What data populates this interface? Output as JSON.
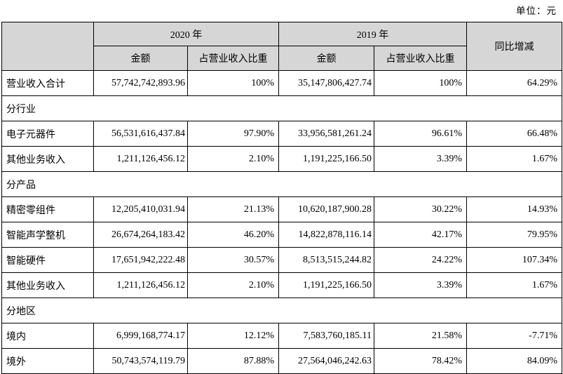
{
  "unit_label": "单位：元",
  "colors": {
    "shading_gray": "#d6d6d6",
    "border": "#000000",
    "background": "#ffffff"
  },
  "table": {
    "header": {
      "year_2020": "2020 年",
      "year_2019": "2019 年",
      "yoy": "同比增减",
      "amount_label": "金额",
      "ratio_label": "占营业收入比重"
    },
    "rows": [
      {
        "type": "data",
        "label": "营业收入合计",
        "a2020": "57,742,742,893.96",
        "r2020": "100%",
        "a2019": "35,147,806,427.74",
        "r2019": "100%",
        "yoy": "64.29%",
        "shaded_keys": [
          "r2020",
          "r2019"
        ]
      },
      {
        "type": "section",
        "label": "分行业"
      },
      {
        "type": "data",
        "label": "电子元器件",
        "a2020": "56,531,616,437.84",
        "r2020": "97.90%",
        "a2019": "33,956,581,261.24",
        "r2019": "96.61%",
        "yoy": "66.48%"
      },
      {
        "type": "data",
        "label": "其他业务收入",
        "a2020": "1,211,126,456.12",
        "r2020": "2.10%",
        "a2019": "1,191,225,166.50",
        "r2019": "3.39%",
        "yoy": "1.67%"
      },
      {
        "type": "section",
        "label": "分产品"
      },
      {
        "type": "data",
        "label": "精密零组件",
        "a2020": "12,205,410,031.94",
        "r2020": "21.13%",
        "a2019": "10,620,187,900.28",
        "r2019": "30.22%",
        "yoy": "14.93%"
      },
      {
        "type": "data",
        "label": "智能声学整机",
        "a2020": "26,674,264,183.42",
        "r2020": "46.20%",
        "a2019": "14,822,878,116.14",
        "r2019": "42.17%",
        "yoy": "79.95%"
      },
      {
        "type": "data",
        "label": "智能硬件",
        "a2020": "17,651,942,222.48",
        "r2020": "30.57%",
        "a2019": "8,513,515,244.82",
        "r2019": "24.22%",
        "yoy": "107.34%"
      },
      {
        "type": "data",
        "label": "其他业务收入",
        "a2020": "1,211,126,456.12",
        "r2020": "2.10%",
        "a2019": "1,191,225,166.50",
        "r2019": "3.39%",
        "yoy": "1.67%"
      },
      {
        "type": "section",
        "label": "分地区"
      },
      {
        "type": "data",
        "label": "境内",
        "a2020": "6,999,168,774.17",
        "r2020": "12.12%",
        "a2019": "7,583,760,185.11",
        "r2019": "21.58%",
        "yoy": "-7.71%"
      },
      {
        "type": "data",
        "label": "境外",
        "a2020": "50,743,574,119.79",
        "r2020": "87.88%",
        "a2019": "27,564,046,242.63",
        "r2019": "78.42%",
        "yoy": "84.09%"
      }
    ]
  }
}
